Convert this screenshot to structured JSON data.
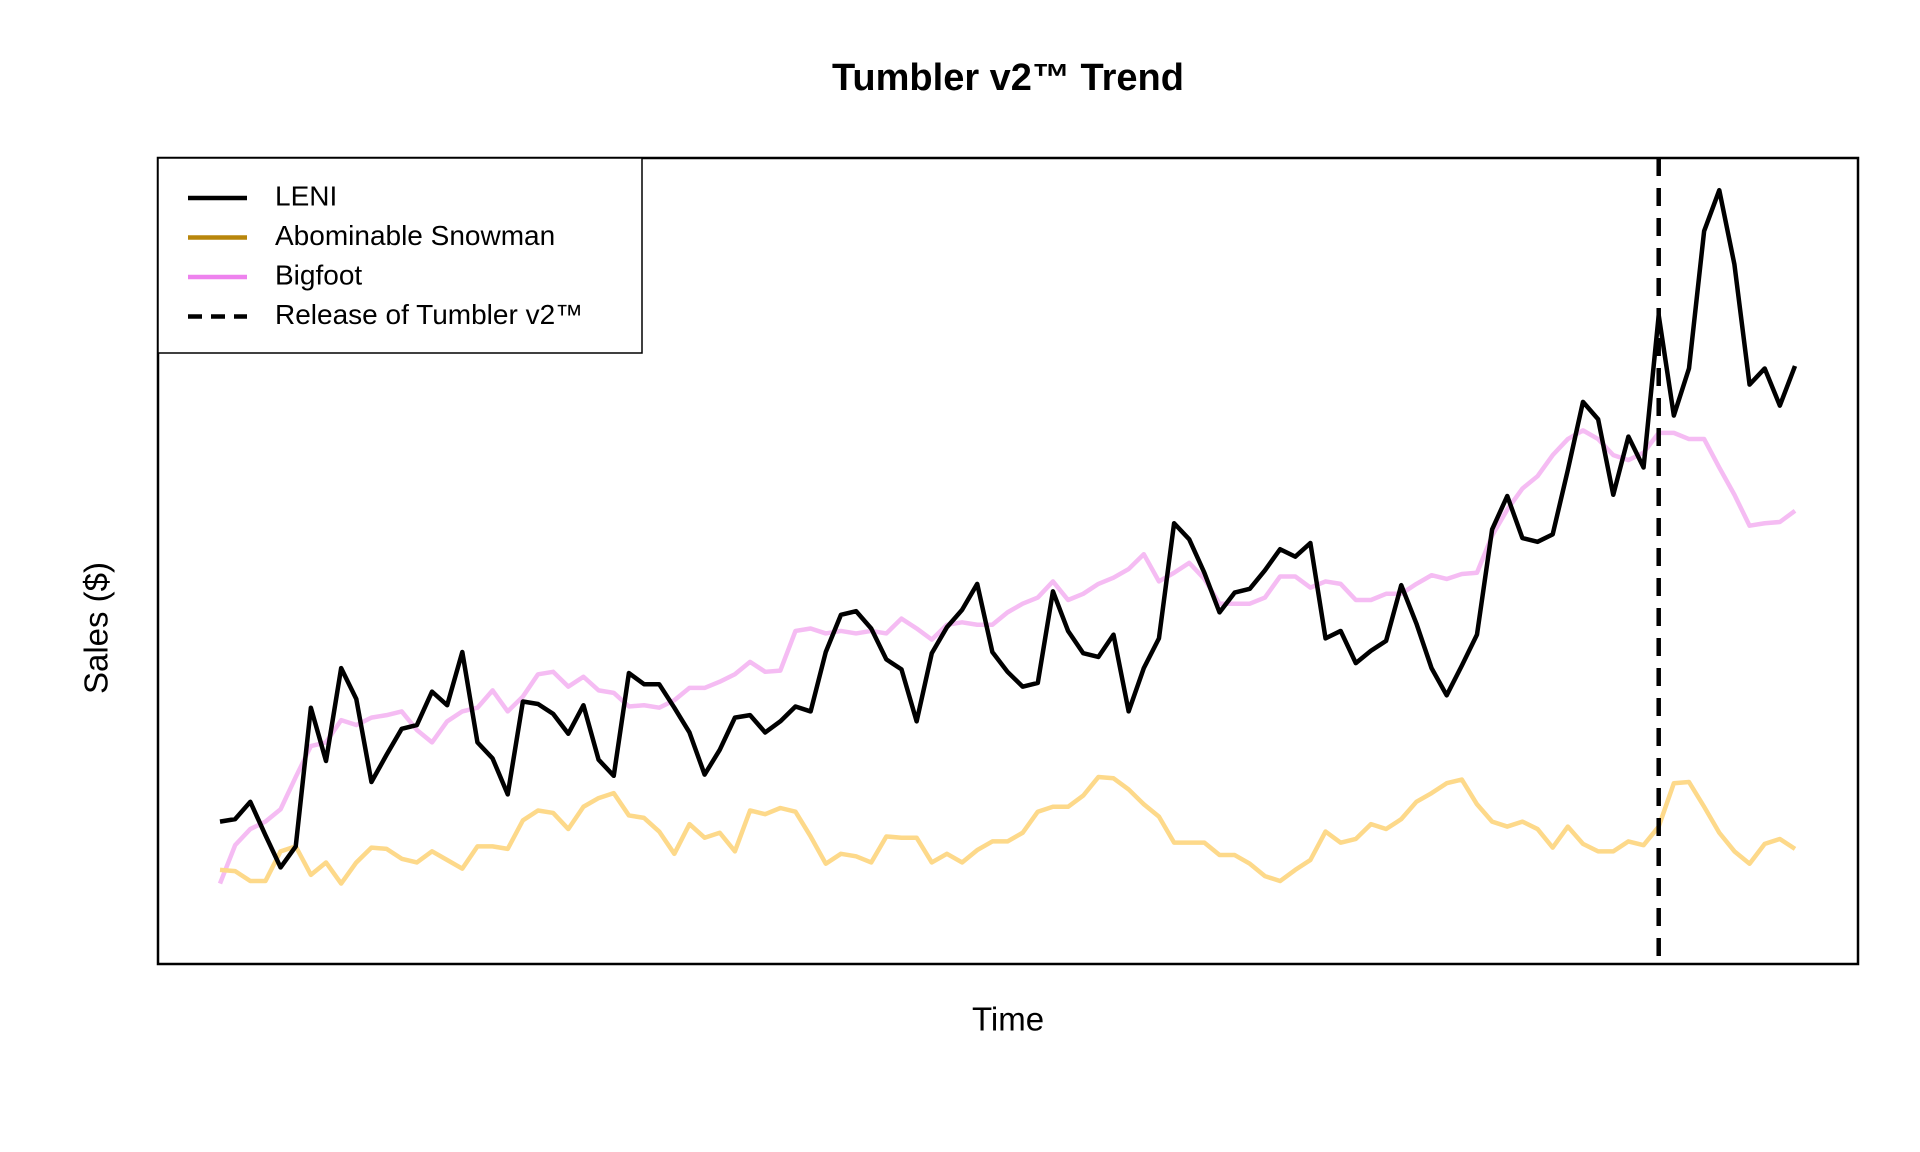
{
  "chart_data": {
    "type": "line",
    "title": "Tumbler v2™ Trend",
    "x_label": "Time",
    "y_label": "Sales ($)",
    "xlim": [
      0,
      104
    ],
    "ylim": [
      0,
      651
    ],
    "legend": "top-left",
    "series": [
      {
        "name": "LENI",
        "color": "#000000",
        "line_color": "#000000",
        "values": [
          115,
          117,
          131,
          104,
          78,
          95,
          207,
          164,
          239,
          214,
          147,
          169,
          190,
          193,
          220,
          209,
          252,
          179,
          166,
          137,
          212,
          210,
          202,
          186,
          209,
          165,
          152,
          235,
          226,
          226,
          207,
          187,
          153,
          173,
          199,
          201,
          187,
          196,
          208,
          204,
          252,
          282,
          285,
          271,
          246,
          238,
          196,
          251,
          272,
          286,
          307,
          252,
          236,
          224,
          227,
          301,
          269,
          251,
          248,
          266,
          204,
          239,
          263,
          356,
          343,
          316,
          284,
          300,
          303,
          318,
          335,
          329,
          340,
          263,
          269,
          243,
          253,
          261,
          306,
          275,
          239,
          217,
          241,
          266,
          351,
          378,
          344,
          341,
          347,
          399,
          454,
          440,
          379,
          426,
          401,
          524,
          443,
          481,
          592,
          625,
          565,
          468,
          481,
          451,
          483
        ]
      },
      {
        "name": "Abominable Snowman",
        "color": "#b8860b",
        "line_color": "#fdd98a",
        "values": [
          76,
          75,
          67,
          67,
          91,
          95,
          72,
          82,
          65,
          82,
          94,
          93,
          85,
          82,
          91,
          84,
          77,
          95,
          95,
          93,
          116,
          124,
          122,
          109,
          127,
          134,
          138,
          120,
          118,
          107,
          89,
          113,
          102,
          106,
          91,
          124,
          121,
          126,
          123,
          103,
          81,
          89,
          87,
          82,
          103,
          102,
          102,
          82,
          89,
          82,
          92,
          99,
          99,
          106,
          123,
          127,
          127,
          136,
          151,
          150,
          141,
          129,
          119,
          98,
          98,
          98,
          88,
          88,
          81,
          71,
          67,
          76,
          84,
          107,
          98,
          101,
          113,
          109,
          117,
          131,
          138,
          146,
          149,
          129,
          115,
          111,
          115,
          109,
          94,
          111,
          97,
          91,
          91,
          99,
          96,
          111,
          146,
          147,
          127,
          106,
          91,
          81,
          97,
          101,
          93
        ]
      },
      {
        "name": "Bigfoot",
        "color": "#ee82ee",
        "line_color": "#f5bcf3",
        "values": [
          65,
          96,
          109,
          115,
          125,
          151,
          176,
          179,
          197,
          193,
          199,
          201,
          204,
          189,
          179,
          196,
          204,
          207,
          221,
          204,
          216,
          234,
          236,
          224,
          232,
          221,
          219,
          208,
          209,
          207,
          213,
          223,
          223,
          228,
          234,
          244,
          236,
          237,
          269,
          271,
          267,
          269,
          267,
          269,
          267,
          279,
          271,
          262,
          274,
          276,
          274,
          274,
          284,
          291,
          296,
          309,
          294,
          299,
          307,
          312,
          319,
          331,
          309,
          316,
          324,
          311,
          291,
          291,
          291,
          296,
          313,
          313,
          304,
          309,
          307,
          294,
          294,
          299,
          299,
          307,
          314,
          311,
          315,
          316,
          346,
          367,
          384,
          394,
          411,
          424,
          431,
          424,
          411,
          407,
          413,
          429,
          429,
          424,
          424,
          401,
          379,
          354,
          356,
          357,
          366
        ]
      }
    ],
    "vline": {
      "x": 95,
      "label": "Release of Tumbler v2™",
      "color": "#000000"
    }
  }
}
